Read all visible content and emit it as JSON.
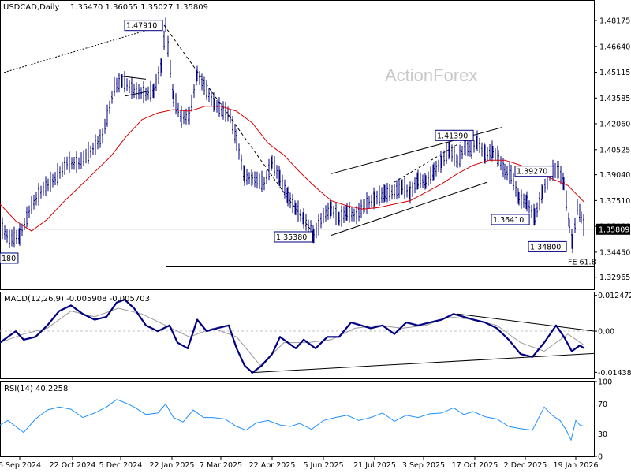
{
  "header": {
    "symbol": "USDCAD,Daily",
    "ohlc": "1.35470 1.36055 1.35027 1.35809",
    "watermark": "ActionForex"
  },
  "chart_data": [
    {
      "type": "ohlc",
      "title": "USDCAD,Daily",
      "ylim": [
        1.3225,
        1.4925
      ],
      "y_ticks": [
        "1.48175",
        "1.46640",
        "1.45115",
        "1.43585",
        "1.42060",
        "1.40525",
        "1.39040",
        "1.37510",
        "1.35980",
        "1.34450",
        "1.32965"
      ],
      "current_price": "1.35809",
      "x_ticks": [
        "6 Sep 2024",
        "22 Oct 2024",
        "5 Dec 2024",
        "22 Jan 2025",
        "7 Mar 2025",
        "22 Apr 2025",
        "5 Jun 2025",
        "21 Jul 2025",
        "3 Sep 2025",
        "17 Oct 2025",
        "2 Dec 2025",
        "19 Jan 2026"
      ],
      "series": [
        {
          "name": "Price",
          "points": [
            [
              0,
              1.36
            ],
            [
              12,
              1.352
            ],
            [
              25,
              1.354
            ],
            [
              40,
              1.372
            ],
            [
              55,
              1.382
            ],
            [
              70,
              1.388
            ],
            [
              85,
              1.397
            ],
            [
              100,
              1.397
            ],
            [
              115,
              1.404
            ],
            [
              130,
              1.413
            ],
            [
              145,
              1.442
            ],
            [
              155,
              1.446
            ],
            [
              170,
              1.44
            ],
            [
              185,
              1.438
            ],
            [
              195,
              1.44
            ],
            [
              205,
              1.455
            ],
            [
              210,
              1.479
            ],
            [
              220,
              1.435
            ],
            [
              230,
              1.424
            ],
            [
              240,
              1.425
            ],
            [
              250,
              1.45
            ],
            [
              262,
              1.44
            ],
            [
              272,
              1.432
            ],
            [
              283,
              1.428
            ],
            [
              292,
              1.425
            ],
            [
              300,
              1.41
            ],
            [
              310,
              1.389
            ],
            [
              320,
              1.388
            ],
            [
              335,
              1.385
            ],
            [
              345,
              1.398
            ],
            [
              355,
              1.388
            ],
            [
              365,
              1.377
            ],
            [
              375,
              1.37
            ],
            [
              385,
              1.364
            ],
            [
              398,
              1.354
            ],
            [
              410,
              1.366
            ],
            [
              420,
              1.37
            ],
            [
              430,
              1.364
            ],
            [
              440,
              1.368
            ],
            [
              452,
              1.366
            ],
            [
              462,
              1.372
            ],
            [
              475,
              1.376
            ],
            [
              488,
              1.379
            ],
            [
              500,
              1.38
            ],
            [
              510,
              1.383
            ],
            [
              520,
              1.379
            ],
            [
              530,
              1.387
            ],
            [
              540,
              1.386
            ],
            [
              550,
              1.392
            ],
            [
              560,
              1.398
            ],
            [
              570,
              1.405
            ],
            [
              580,
              1.398
            ],
            [
              590,
              1.407
            ],
            [
              598,
              1.405
            ],
            [
              605,
              1.41
            ],
            [
              615,
              1.402
            ],
            [
              625,
              1.404
            ],
            [
              632,
              1.4
            ],
            [
              640,
              1.392
            ],
            [
              648,
              1.39
            ],
            [
              658,
              1.376
            ],
            [
              668,
              1.374
            ],
            [
              678,
              1.365
            ],
            [
              688,
              1.38
            ],
            [
              698,
              1.392
            ],
            [
              708,
              1.393
            ],
            [
              715,
              1.385
            ],
            [
              722,
              1.36
            ],
            [
              726,
              1.349
            ],
            [
              732,
              1.371
            ],
            [
              737,
              1.365
            ],
            [
              741,
              1.358
            ]
          ]
        },
        {
          "name": "MA",
          "points": [
            [
              0,
              1.373
            ],
            [
              20,
              1.363
            ],
            [
              40,
              1.357
            ],
            [
              60,
              1.364
            ],
            [
              80,
              1.374
            ],
            [
              100,
              1.383
            ],
            [
              120,
              1.392
            ],
            [
              140,
              1.401
            ],
            [
              160,
              1.413
            ],
            [
              180,
              1.423
            ],
            [
              200,
              1.427
            ],
            [
              220,
              1.429
            ],
            [
              240,
              1.428
            ],
            [
              260,
              1.431
            ],
            [
              280,
              1.431
            ],
            [
              300,
              1.428
            ],
            [
              320,
              1.421
            ],
            [
              340,
              1.409
            ],
            [
              360,
              1.402
            ],
            [
              380,
              1.392
            ],
            [
              400,
              1.383
            ],
            [
              420,
              1.375
            ],
            [
              440,
              1.372
            ],
            [
              460,
              1.37
            ],
            [
              480,
              1.371
            ],
            [
              500,
              1.373
            ],
            [
              520,
              1.375
            ],
            [
              540,
              1.38
            ],
            [
              560,
              1.385
            ],
            [
              580,
              1.391
            ],
            [
              600,
              1.396
            ],
            [
              620,
              1.399
            ],
            [
              640,
              1.399
            ],
            [
              660,
              1.396
            ],
            [
              680,
              1.392
            ],
            [
              700,
              1.388
            ],
            [
              720,
              1.384
            ],
            [
              741,
              1.374
            ]
          ]
        }
      ],
      "annotations": [
        {
          "label": "1.47910",
          "price": 1.4791
        },
        {
          "label": "1.41390",
          "price": 1.4139
        },
        {
          "label": "1.39270",
          "price": 1.3927
        },
        {
          "label": "1.36410",
          "price": 1.3641
        },
        {
          "label": "1.35380",
          "price": 1.3538
        },
        {
          "label": "1.34800",
          "price": 1.348
        },
        {
          "label": "180",
          "price": 1.3412
        }
      ],
      "fe_label": "FE 61.8",
      "fe_level": 1.3358
    },
    {
      "type": "line",
      "title": "MACD(12,26,9) -0.005908 -0.005703",
      "ylim": [
        -0.0165,
        0.0135
      ],
      "y_ticks": [
        "0.012472",
        "0.00",
        "-0.014389"
      ],
      "series": [
        {
          "name": "MACD",
          "points": [
            [
              0,
              -0.004
            ],
            [
              10,
              -0.002
            ],
            [
              20,
              0.0
            ],
            [
              30,
              -0.003
            ],
            [
              45,
              -0.002
            ],
            [
              60,
              0.002
            ],
            [
              75,
              0.007
            ],
            [
              90,
              0.009
            ],
            [
              105,
              0.006
            ],
            [
              120,
              0.004
            ],
            [
              135,
              0.005
            ],
            [
              148,
              0.01
            ],
            [
              158,
              0.011
            ],
            [
              170,
              0.008
            ],
            [
              185,
              0.002
            ],
            [
              200,
              0.0
            ],
            [
              215,
              0.002
            ],
            [
              225,
              -0.004
            ],
            [
              238,
              -0.006
            ],
            [
              250,
              0.004
            ],
            [
              262,
              0.0
            ],
            [
              275,
              0.001
            ],
            [
              290,
              0.002
            ],
            [
              300,
              -0.006
            ],
            [
              310,
              -0.012
            ],
            [
              320,
              -0.0145
            ],
            [
              332,
              -0.012
            ],
            [
              345,
              -0.008
            ],
            [
              355,
              -0.002
            ],
            [
              365,
              -0.004
            ],
            [
              375,
              -0.006
            ],
            [
              385,
              -0.003
            ],
            [
              400,
              -0.006
            ],
            [
              415,
              -0.002
            ],
            [
              430,
              -0.002
            ],
            [
              445,
              0.003
            ],
            [
              458,
              0.002
            ],
            [
              470,
              0.001
            ],
            [
              485,
              0.002
            ],
            [
              500,
              -0.001
            ],
            [
              515,
              0.003
            ],
            [
              530,
              0.002
            ],
            [
              545,
              0.003
            ],
            [
              560,
              0.004
            ],
            [
              575,
              0.006
            ],
            [
              588,
              0.005
            ],
            [
              600,
              0.004
            ],
            [
              615,
              0.003
            ],
            [
              630,
              0.001
            ],
            [
              645,
              -0.003
            ],
            [
              660,
              -0.008
            ],
            [
              675,
              -0.009
            ],
            [
              690,
              -0.004
            ],
            [
              705,
              0.002
            ],
            [
              715,
              -0.002
            ],
            [
              725,
              -0.007
            ],
            [
              735,
              -0.005
            ],
            [
              741,
              -0.006
            ]
          ]
        },
        {
          "name": "Signal",
          "points": [
            [
              0,
              -0.004
            ],
            [
              30,
              -0.001
            ],
            [
              60,
              0.001
            ],
            [
              90,
              0.007
            ],
            [
              120,
              0.005
            ],
            [
              150,
              0.008
            ],
            [
              180,
              0.006
            ],
            [
              210,
              0.002
            ],
            [
              240,
              -0.002
            ],
            [
              270,
              0.001
            ],
            [
              300,
              -0.002
            ],
            [
              330,
              -0.012
            ],
            [
              360,
              -0.004
            ],
            [
              390,
              -0.004
            ],
            [
              420,
              -0.003
            ],
            [
              450,
              0.001
            ],
            [
              480,
              0.002
            ],
            [
              510,
              0.001
            ],
            [
              540,
              0.002
            ],
            [
              570,
              0.005
            ],
            [
              600,
              0.004
            ],
            [
              630,
              0.002
            ],
            [
              660,
              -0.004
            ],
            [
              690,
              -0.007
            ],
            [
              720,
              -0.001
            ],
            [
              741,
              -0.005
            ]
          ]
        }
      ]
    },
    {
      "type": "line",
      "title": "RSI(14) 40.2258",
      "ylim": [
        0,
        100
      ],
      "y_ticks": [
        "100",
        "70",
        "30",
        "0"
      ],
      "series": [
        {
          "name": "RSI",
          "points": [
            [
              0,
              42
            ],
            [
              10,
              48
            ],
            [
              20,
              40
            ],
            [
              30,
              32
            ],
            [
              45,
              50
            ],
            [
              60,
              62
            ],
            [
              75,
              66
            ],
            [
              90,
              63
            ],
            [
              105,
              52
            ],
            [
              120,
              58
            ],
            [
              135,
              66
            ],
            [
              148,
              76
            ],
            [
              158,
              72
            ],
            [
              170,
              66
            ],
            [
              185,
              56
            ],
            [
              200,
              58
            ],
            [
              210,
              70
            ],
            [
              220,
              52
            ],
            [
              232,
              46
            ],
            [
              245,
              62
            ],
            [
              258,
              52
            ],
            [
              270,
              52
            ],
            [
              285,
              50
            ],
            [
              300,
              40
            ],
            [
              312,
              35
            ],
            [
              325,
              45
            ],
            [
              340,
              48
            ],
            [
              355,
              42
            ],
            [
              368,
              40
            ],
            [
              380,
              44
            ],
            [
              395,
              36
            ],
            [
              410,
              48
            ],
            [
              425,
              52
            ],
            [
              440,
              55
            ],
            [
              455,
              48
            ],
            [
              470,
              52
            ],
            [
              485,
              58
            ],
            [
              500,
              47
            ],
            [
              515,
              55
            ],
            [
              530,
              52
            ],
            [
              545,
              57
            ],
            [
              560,
              58
            ],
            [
              575,
              65
            ],
            [
              588,
              56
            ],
            [
              600,
              60
            ],
            [
              615,
              53
            ],
            [
              630,
              50
            ],
            [
              645,
              40
            ],
            [
              660,
              37
            ],
            [
              675,
              35
            ],
            [
              690,
              66
            ],
            [
              700,
              55
            ],
            [
              710,
              48
            ],
            [
              718,
              35
            ],
            [
              724,
              22
            ],
            [
              730,
              48
            ],
            [
              735,
              42
            ],
            [
              741,
              40
            ]
          ]
        }
      ]
    }
  ],
  "panels": {
    "macd_label": "MACD(12,26,9) -0.005908 -0.005703",
    "rsi_label": "RSI(14) 40.2258"
  },
  "colors": {
    "price": "#000080",
    "ma": "#d90000",
    "macd": "#000080",
    "signal": "#999999",
    "grid": "#c0c0c0",
    "level": "#000000"
  }
}
